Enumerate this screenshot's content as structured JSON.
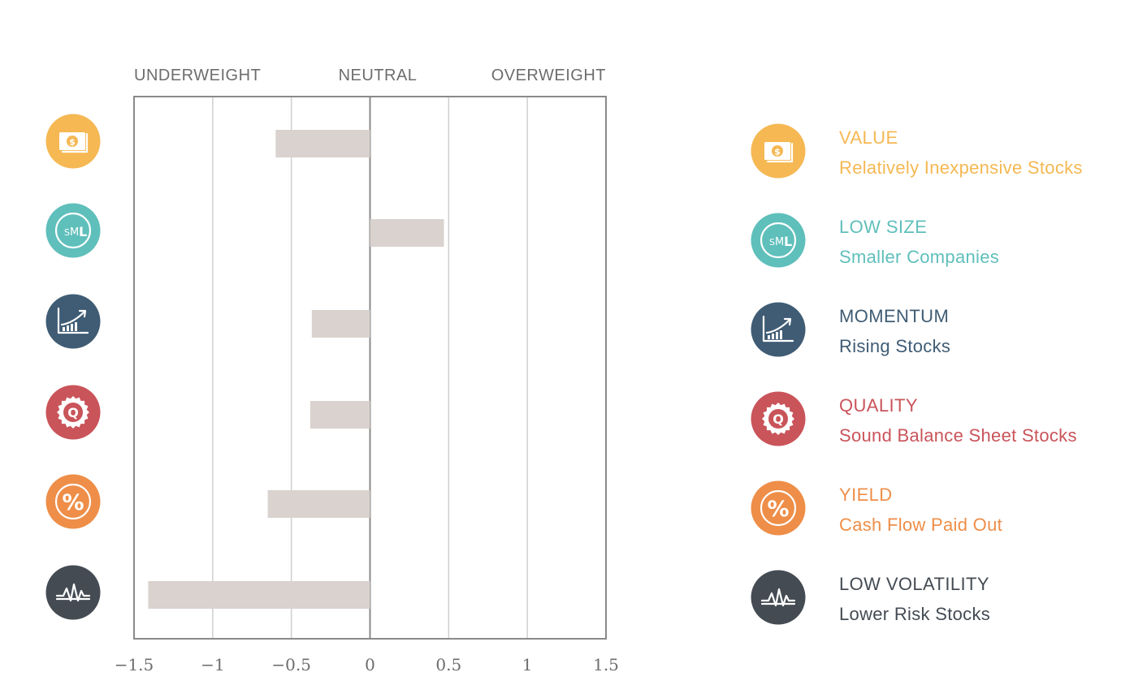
{
  "chart_data": {
    "type": "bar",
    "orientation": "horizontal",
    "zone_labels": [
      "UNDERWEIGHT",
      "NEUTRAL",
      "OVERWEIGHT"
    ],
    "categories": [
      "VALUE",
      "LOW SIZE",
      "MOMENTUM",
      "QUALITY",
      "YIELD",
      "LOW VOLATILITY"
    ],
    "values": [
      -0.6,
      0.47,
      -0.37,
      -0.38,
      -0.65,
      -1.41
    ],
    "xlim": [
      -1.5,
      1.5
    ],
    "x_ticks": [
      -1.5,
      -1,
      -0.5,
      0,
      0.5,
      1,
      1.5
    ],
    "x_tick_labels": [
      "−1.5",
      "−1",
      "−0.5",
      "0",
      "0.5",
      "1",
      "1.5"
    ],
    "bar_color": "#d9d2ce",
    "grid": true
  },
  "factors": [
    {
      "name": "VALUE",
      "description": "Relatively Inexpensive Stocks",
      "color": "#f5b853",
      "icon": "money-icon"
    },
    {
      "name": "LOW SIZE",
      "description": "Smaller Companies",
      "color": "#5fbfbb",
      "icon": "sml-size-icon"
    },
    {
      "name": "MOMENTUM",
      "description": "Rising Stocks",
      "color": "#3f5c74",
      "icon": "rising-chart-icon"
    },
    {
      "name": "QUALITY",
      "description": "Sound Balance Sheet Stocks",
      "color": "#c9545a",
      "icon": "quality-seal-icon"
    },
    {
      "name": "YIELD",
      "description": "Cash Flow Paid Out",
      "color": "#ee8e48",
      "icon": "percent-icon"
    },
    {
      "name": "LOW VOLATILITY",
      "description": "Lower Risk Stocks",
      "color": "#444b53",
      "icon": "volatility-wave-icon"
    }
  ]
}
